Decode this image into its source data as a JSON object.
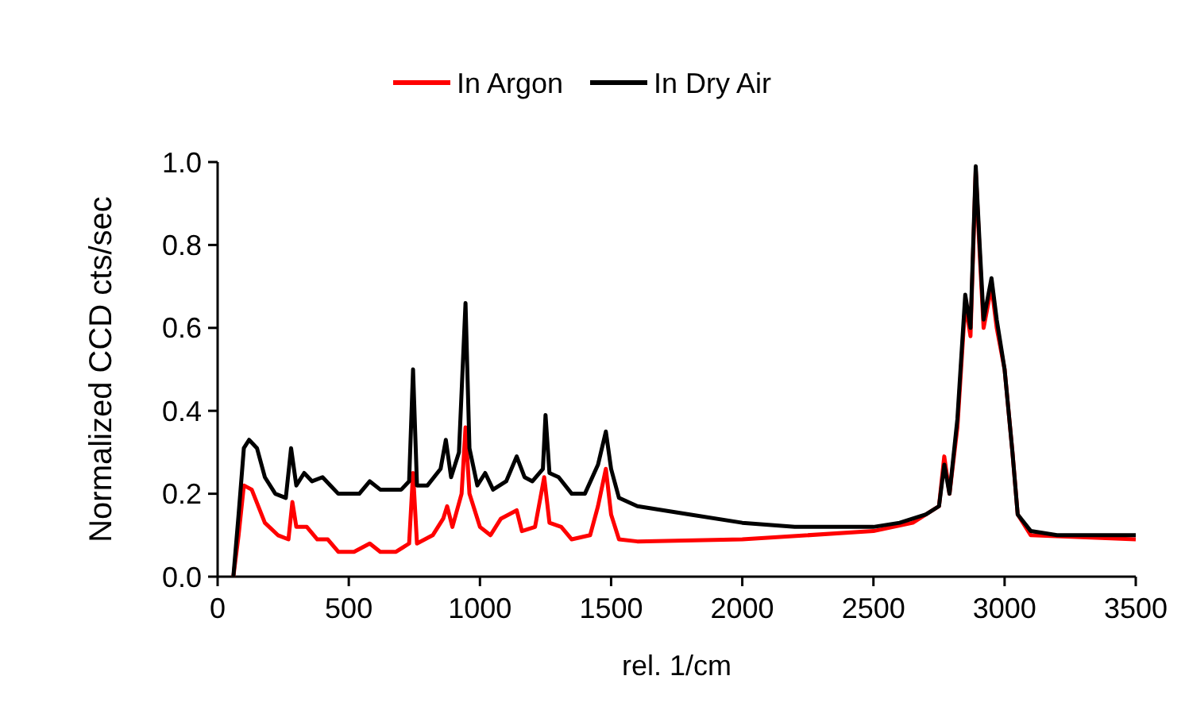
{
  "chart_data": {
    "type": "line",
    "xlabel": "rel. 1/cm",
    "ylabel": "Normalized CCD cts/sec",
    "xlim": [
      0,
      3500
    ],
    "xticks": [
      0,
      500,
      1000,
      1500,
      2000,
      2500,
      3000,
      3500
    ],
    "ylim": [
      0,
      1
    ],
    "yticks": [
      {
        "value": 0,
        "label": "0.0"
      },
      {
        "value": 0.2,
        "label": "0.2"
      },
      {
        "value": 0.4,
        "label": "0.4"
      },
      {
        "value": 0.6,
        "label": "0.6"
      },
      {
        "value": 0.8,
        "label": "0.8"
      },
      {
        "value": 1,
        "label": "1.0"
      }
    ],
    "grid": false,
    "legend": "top",
    "marker": "none",
    "line_style": "solid",
    "series": [
      {
        "name": "In Argon",
        "color": "#ff0000",
        "x": [
          60,
          80,
          100,
          130,
          180,
          230,
          270,
          285,
          300,
          340,
          380,
          420,
          460,
          520,
          580,
          620,
          680,
          730,
          745,
          760,
          820,
          860,
          875,
          895,
          930,
          945,
          960,
          1000,
          1040,
          1080,
          1140,
          1160,
          1210,
          1245,
          1265,
          1310,
          1350,
          1420,
          1450,
          1480,
          1500,
          1530,
          1600,
          2000,
          2500,
          2650,
          2750,
          2770,
          2790,
          2820,
          2850,
          2870,
          2890,
          2905,
          2920,
          2950,
          2970,
          3000,
          3030,
          3050,
          3100,
          3500
        ],
        "values": [
          0,
          0.1,
          0.22,
          0.21,
          0.13,
          0.1,
          0.09,
          0.18,
          0.12,
          0.12,
          0.09,
          0.09,
          0.06,
          0.06,
          0.08,
          0.06,
          0.06,
          0.08,
          0.25,
          0.08,
          0.1,
          0.14,
          0.17,
          0.12,
          0.2,
          0.36,
          0.2,
          0.12,
          0.1,
          0.14,
          0.16,
          0.11,
          0.12,
          0.24,
          0.13,
          0.12,
          0.09,
          0.1,
          0.17,
          0.26,
          0.15,
          0.09,
          0.085,
          0.09,
          0.11,
          0.13,
          0.17,
          0.29,
          0.2,
          0.36,
          0.66,
          0.58,
          0.98,
          0.78,
          0.6,
          0.7,
          0.6,
          0.5,
          0.3,
          0.15,
          0.1,
          0.09
        ]
      },
      {
        "name": "In Dry Air",
        "color": "#000000",
        "x": [
          60,
          80,
          100,
          120,
          150,
          180,
          220,
          260,
          280,
          300,
          330,
          360,
          400,
          430,
          460,
          500,
          540,
          580,
          620,
          660,
          700,
          730,
          745,
          760,
          800,
          850,
          870,
          890,
          920,
          945,
          960,
          990,
          1020,
          1050,
          1100,
          1140,
          1170,
          1200,
          1240,
          1250,
          1265,
          1300,
          1350,
          1400,
          1450,
          1480,
          1500,
          1530,
          1600,
          1800,
          2000,
          2200,
          2500,
          2600,
          2650,
          2700,
          2750,
          2770,
          2790,
          2820,
          2850,
          2870,
          2890,
          2905,
          2920,
          2950,
          2970,
          3000,
          3030,
          3050,
          3100,
          3200,
          3500
        ],
        "values": [
          0,
          0.15,
          0.31,
          0.33,
          0.31,
          0.24,
          0.2,
          0.19,
          0.31,
          0.22,
          0.25,
          0.23,
          0.24,
          0.22,
          0.2,
          0.2,
          0.2,
          0.23,
          0.21,
          0.21,
          0.21,
          0.23,
          0.5,
          0.22,
          0.22,
          0.26,
          0.33,
          0.24,
          0.3,
          0.66,
          0.31,
          0.22,
          0.25,
          0.21,
          0.23,
          0.29,
          0.24,
          0.23,
          0.26,
          0.39,
          0.25,
          0.24,
          0.2,
          0.2,
          0.27,
          0.35,
          0.26,
          0.19,
          0.17,
          0.15,
          0.13,
          0.12,
          0.12,
          0.13,
          0.14,
          0.15,
          0.17,
          0.27,
          0.2,
          0.38,
          0.68,
          0.6,
          0.99,
          0.8,
          0.62,
          0.72,
          0.62,
          0.5,
          0.3,
          0.15,
          0.11,
          0.1,
          0.1
        ]
      }
    ]
  }
}
